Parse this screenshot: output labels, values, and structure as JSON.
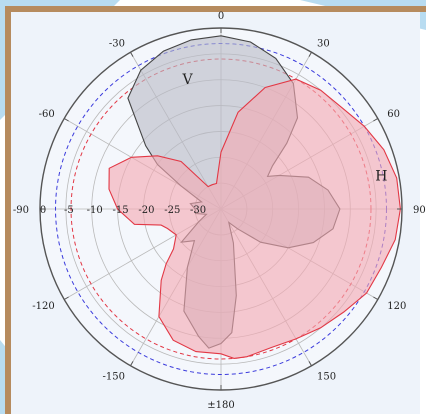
{
  "colors": {
    "page_bg": "#eef3fa",
    "accent_blue": "#b8dcf1",
    "frame_brown": "#b68b5e",
    "grid": "#b9b9b9",
    "outer_circle": "#555555",
    "V_fill": "#b9bcc6",
    "V_stroke": "#444444",
    "H_fill": "#f3a9b3",
    "H_stroke": "#e23845",
    "ref_blue": "#3b3bdc",
    "ref_red": "#e23845"
  },
  "chart_data": {
    "type": "polar",
    "angle_ticks": [
      {
        "angle": 0,
        "label": "0"
      },
      {
        "angle": 30,
        "label": "30"
      },
      {
        "angle": 60,
        "label": "60"
      },
      {
        "angle": 90,
        "label": "90"
      },
      {
        "angle": 120,
        "label": "120"
      },
      {
        "angle": 150,
        "label": "150"
      },
      {
        "angle": 180,
        "label": "±180"
      },
      {
        "angle": -150,
        "label": "-150"
      },
      {
        "angle": -120,
        "label": "-120"
      },
      {
        "angle": -90,
        "label": "-90"
      },
      {
        "angle": -60,
        "label": "-60"
      },
      {
        "angle": -30,
        "label": "-30"
      }
    ],
    "radial_ticks": [
      {
        "value": 0,
        "label": "0"
      },
      {
        "value": -5,
        "label": "-5"
      },
      {
        "value": -10,
        "label": "-10"
      },
      {
        "value": -15,
        "label": "-15"
      },
      {
        "value": -20,
        "label": "-20"
      },
      {
        "value": -25,
        "label": "-25"
      },
      {
        "value": -30,
        "label": "-30"
      }
    ],
    "rlim": [
      -35,
      0
    ],
    "reference_circles": [
      {
        "value": -3,
        "color": "#3b3bdc",
        "style": "dashed"
      },
      {
        "value": -6,
        "color": "#e23845",
        "style": "dashed"
      }
    ],
    "series": [
      {
        "name": "V",
        "label_at": {
          "angle": -15,
          "value": -10
        },
        "fill": "#b9bcc6",
        "stroke": "#444444",
        "points": [
          [
            0,
            -1.5
          ],
          [
            10,
            -2.2
          ],
          [
            20,
            -4
          ],
          [
            30,
            -7
          ],
          [
            40,
            -12
          ],
          [
            45,
            -17
          ],
          [
            50,
            -22
          ],
          [
            55,
            -24
          ],
          [
            60,
            -22
          ],
          [
            70,
            -17
          ],
          [
            80,
            -14
          ],
          [
            90,
            -12
          ],
          [
            100,
            -13
          ],
          [
            110,
            -16
          ],
          [
            120,
            -20
          ],
          [
            130,
            -25
          ],
          [
            140,
            -30
          ],
          [
            150,
            -32
          ],
          [
            160,
            -28
          ],
          [
            170,
            -18
          ],
          [
            175,
            -11
          ],
          [
            180,
            -9
          ],
          [
            185,
            -8
          ],
          [
            190,
            -10
          ],
          [
            200,
            -14
          ],
          [
            210,
            -22
          ],
          [
            220,
            -27
          ],
          [
            230,
            -25
          ],
          [
            240,
            -30
          ],
          [
            250,
            -32
          ],
          [
            260,
            -30
          ],
          [
            270,
            -30
          ],
          [
            280,
            -29
          ],
          [
            290,
            -31
          ],
          [
            300,
            -26
          ],
          [
            305,
            -20
          ],
          [
            310,
            -16
          ],
          [
            320,
            -7
          ],
          [
            330,
            -4
          ],
          [
            340,
            -2.5
          ],
          [
            350,
            -1.8
          ]
        ]
      },
      {
        "name": "H",
        "label_at": {
          "angle": 80,
          "value": -3.5
        },
        "fill": "#f3a9b3",
        "stroke": "#e23845",
        "points": [
          [
            0,
            -24
          ],
          [
            10,
            -16
          ],
          [
            20,
            -10
          ],
          [
            30,
            -6
          ],
          [
            40,
            -5
          ],
          [
            50,
            -4.5
          ],
          [
            60,
            -3
          ],
          [
            70,
            -1.5
          ],
          [
            80,
            -0.5
          ],
          [
            90,
            -0.3
          ],
          [
            100,
            -0.8
          ],
          [
            110,
            -2
          ],
          [
            120,
            -2.5
          ],
          [
            130,
            -4
          ],
          [
            140,
            -5
          ],
          [
            150,
            -6
          ],
          [
            160,
            -6.5
          ],
          [
            170,
            -6
          ],
          [
            175,
            -6
          ],
          [
            180,
            -7
          ],
          [
            190,
            -7
          ],
          [
            200,
            -8
          ],
          [
            210,
            -11
          ],
          [
            220,
            -17
          ],
          [
            225,
            -20
          ],
          [
            230,
            -23
          ],
          [
            240,
            -25
          ],
          [
            250,
            -24
          ],
          [
            255,
            -23
          ],
          [
            260,
            -18
          ],
          [
            270,
            -15
          ],
          [
            280,
            -13
          ],
          [
            290,
            -12
          ],
          [
            300,
            -15
          ],
          [
            310,
            -19
          ],
          [
            320,
            -23
          ],
          [
            330,
            -30
          ],
          [
            340,
            -30
          ],
          [
            350,
            -30
          ]
        ]
      }
    ]
  }
}
